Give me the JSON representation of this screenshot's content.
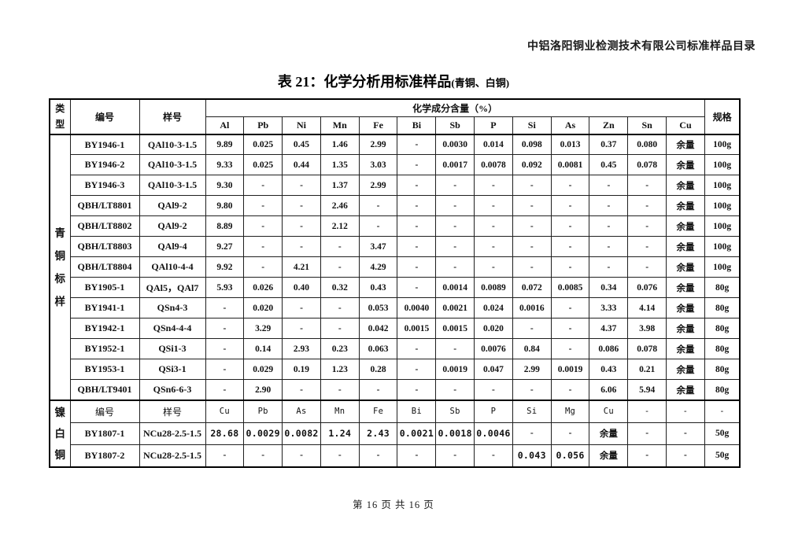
{
  "page": {
    "header_right": "中铝洛阳铜业检测技术有限公司标准样品目录",
    "title_main": "表 21：化学分析用标准样品",
    "title_paren": "(青铜、白铜)",
    "footer": "第 16 页 共 16 页"
  },
  "colors": {
    "ink": "#111111",
    "paper": "#ffffff",
    "border": "#000000"
  },
  "table": {
    "header": {
      "col_type": "类型",
      "col_id": "编号",
      "col_sample": "样号",
      "col_composition": "化学成分含量（%）",
      "col_spec": "规格",
      "elements": [
        "Al",
        "Pb",
        "Ni",
        "Mn",
        "Fe",
        "Bi",
        "Sb",
        "P",
        "Si",
        "As",
        "Zn",
        "Sn",
        "Cu"
      ]
    },
    "section1": {
      "label": "青铜标样",
      "rows": [
        {
          "id": "BY1946-1",
          "sample": "QAl10-3-1.5",
          "values": [
            "9.89",
            "0.025",
            "0.45",
            "1.46",
            "2.99",
            "-",
            "0.0030",
            "0.014",
            "0.098",
            "0.013",
            "0.37",
            "0.080",
            "余量"
          ],
          "spec": "100g"
        },
        {
          "id": "BY1946-2",
          "sample": "QAl10-3-1.5",
          "values": [
            "9.33",
            "0.025",
            "0.44",
            "1.35",
            "3.03",
            "-",
            "0.0017",
            "0.0078",
            "0.092",
            "0.0081",
            "0.45",
            "0.078",
            "余量"
          ],
          "spec": "100g"
        },
        {
          "id": "BY1946-3",
          "sample": "QAl10-3-1.5",
          "values": [
            "9.30",
            "-",
            "-",
            "1.37",
            "2.99",
            "-",
            "-",
            "-",
            "-",
            "-",
            "-",
            "-",
            "余量"
          ],
          "spec": "100g"
        },
        {
          "id": "QBH/LT8801",
          "sample": "QAl9-2",
          "values": [
            "9.80",
            "-",
            "-",
            "2.46",
            "-",
            "-",
            "-",
            "-",
            "-",
            "-",
            "-",
            "-",
            "余量"
          ],
          "spec": "100g"
        },
        {
          "id": "QBH/LT8802",
          "sample": "QAl9-2",
          "values": [
            "8.89",
            "-",
            "-",
            "2.12",
            "-",
            "-",
            "-",
            "-",
            "-",
            "-",
            "-",
            "-",
            "余量"
          ],
          "spec": "100g"
        },
        {
          "id": "QBH/LT8803",
          "sample": "QAl9-4",
          "values": [
            "9.27",
            "-",
            "-",
            "-",
            "3.47",
            "-",
            "-",
            "-",
            "-",
            "-",
            "-",
            "-",
            "余量"
          ],
          "spec": "100g"
        },
        {
          "id": "QBH/LT8804",
          "sample": "QAl10-4-4",
          "values": [
            "9.92",
            "-",
            "4.21",
            "-",
            "4.29",
            "-",
            "-",
            "-",
            "-",
            "-",
            "-",
            "-",
            "余量"
          ],
          "spec": "100g"
        },
        {
          "id": "BY1905-1",
          "sample": "QAl5，QAl7",
          "values": [
            "5.93",
            "0.026",
            "0.40",
            "0.32",
            "0.43",
            "-",
            "0.0014",
            "0.0089",
            "0.072",
            "0.0085",
            "0.34",
            "0.076",
            "余量"
          ],
          "spec": "80g"
        },
        {
          "id": "BY1941-1",
          "sample": "QSn4-3",
          "values": [
            "-",
            "0.020",
            "-",
            "-",
            "0.053",
            "0.0040",
            "0.0021",
            "0.024",
            "0.0016",
            "-",
            "3.33",
            "4.14",
            "余量"
          ],
          "spec": "80g"
        },
        {
          "id": "BY1942-1",
          "sample": "QSn4-4-4",
          "values": [
            "-",
            "3.29",
            "-",
            "-",
            "0.042",
            "0.0015",
            "0.0015",
            "0.020",
            "-",
            "-",
            "4.37",
            "3.98",
            "余量"
          ],
          "spec": "80g"
        },
        {
          "id": "BY1952-1",
          "sample": "QSi1-3",
          "values": [
            "-",
            "0.14",
            "2.93",
            "0.23",
            "0.063",
            "-",
            "-",
            "0.0076",
            "0.84",
            "-",
            "0.086",
            "0.078",
            "余量"
          ],
          "spec": "80g"
        },
        {
          "id": "BY1953-1",
          "sample": "QSi3-1",
          "values": [
            "-",
            "0.029",
            "0.19",
            "1.23",
            "0.28",
            "-",
            "0.0019",
            "0.047",
            "2.99",
            "0.0019",
            "0.43",
            "0.21",
            "余量"
          ],
          "spec": "80g"
        },
        {
          "id": "QBH/LT9401",
          "sample": "QSn6-6-3",
          "values": [
            "-",
            "2.90",
            "-",
            "-",
            "-",
            "-",
            "-",
            "-",
            "-",
            "-",
            "6.06",
            "5.94",
            "余量"
          ],
          "spec": "80g"
        }
      ]
    },
    "section2": {
      "label": "镍白铜",
      "subheader": {
        "id": "编号",
        "sample": "样号",
        "elements": [
          "Cu",
          "Pb",
          "As",
          "Mn",
          "Fe",
          "Bi",
          "Sb",
          "P",
          "Si",
          "Mg",
          "Cu",
          "-",
          "-"
        ],
        "spec": "-"
      },
      "rows": [
        {
          "id": "BY1807-1",
          "sample": "NCu28-2.5-1.5",
          "values": [
            "28.68",
            "0.0029",
            "0.0082",
            "1.24",
            "2.43",
            "0.0021",
            "0.0018",
            "0.0046",
            "-",
            "-",
            "余量",
            "-",
            "-"
          ],
          "spec": "50g"
        },
        {
          "id": "BY1807-2",
          "sample": "NCu28-2.5-1.5",
          "values": [
            "-",
            "-",
            "-",
            "-",
            "-",
            "-",
            "-",
            "-",
            "0.043",
            "0.056",
            "余量",
            "-",
            "-"
          ],
          "spec": "50g"
        }
      ]
    }
  }
}
